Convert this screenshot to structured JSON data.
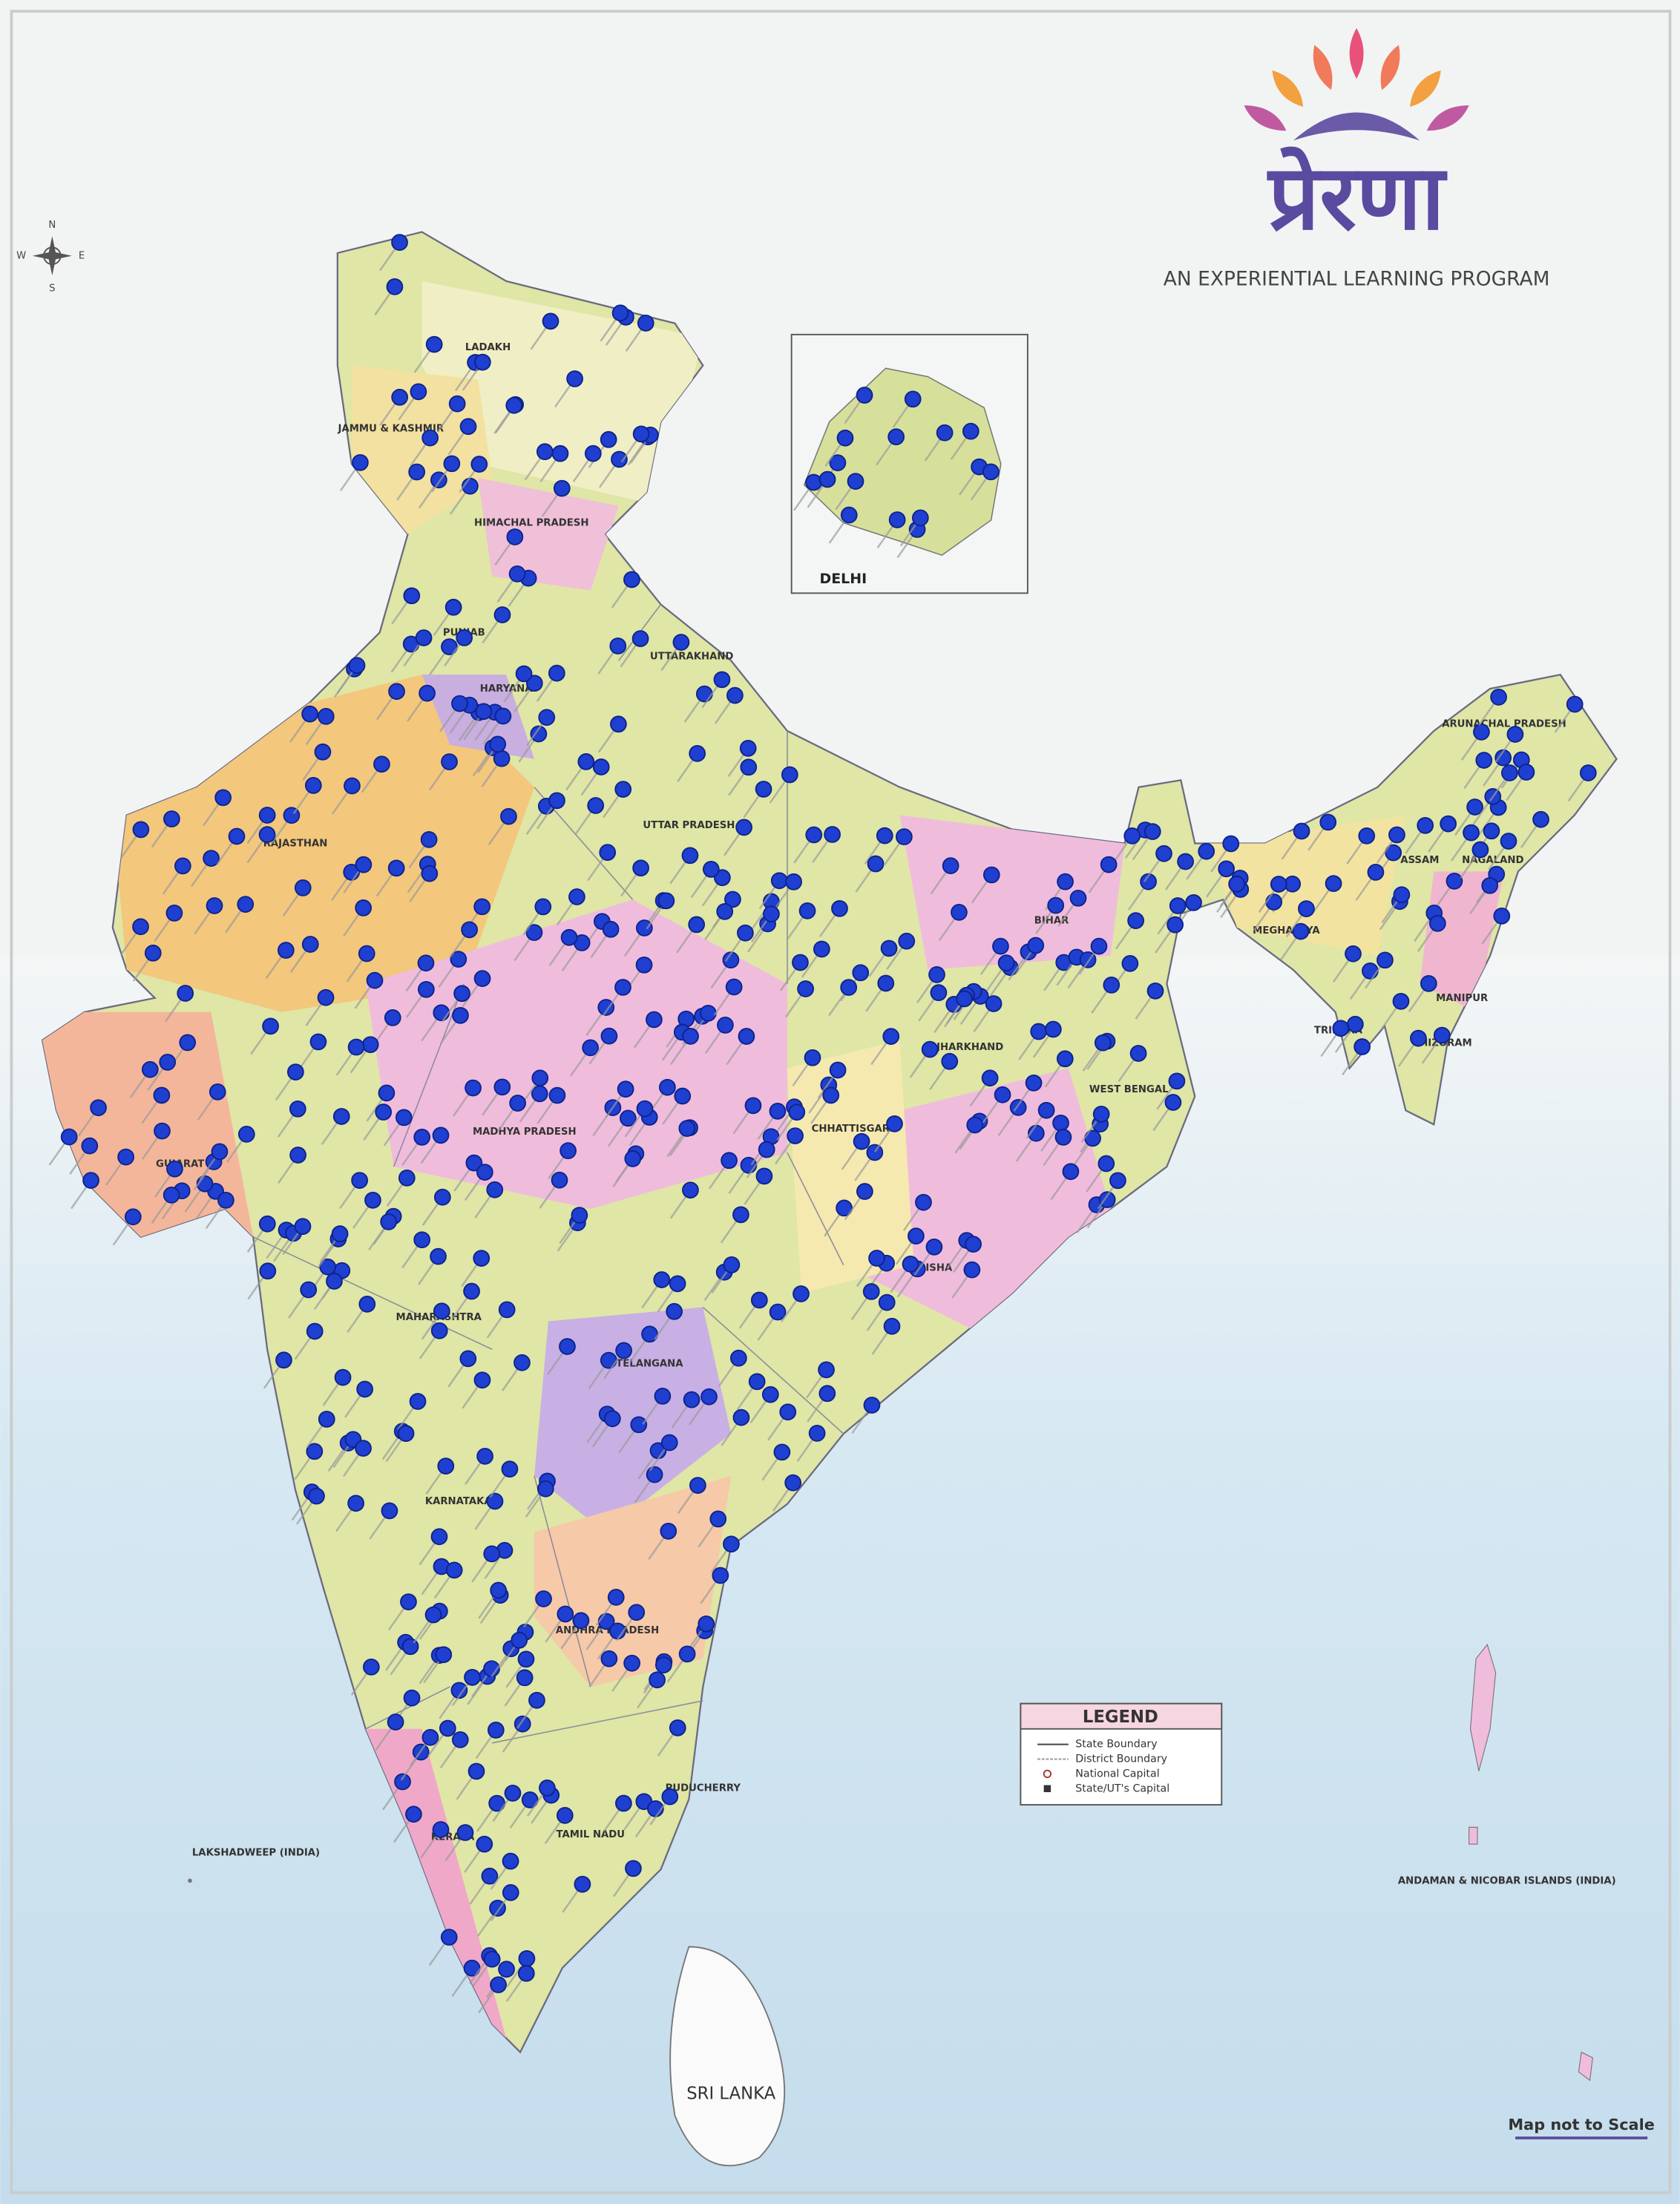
{
  "header": {
    "logo": "प्रेरणा",
    "tagline": "AN EXPERIENTIAL LEARNING PROGRAM"
  },
  "compass": [
    "N",
    "E",
    "S",
    "W"
  ],
  "map": {
    "regions": [
      "LADAKH",
      "JAMMU & KASHMIR",
      "HIMACHAL PRADESH",
      "PUNJAB",
      "UTTARAKHAND",
      "HARYANA",
      "RAJASTHAN",
      "UTTAR PRADESH",
      "BIHAR",
      "ARUNACHAL PRADESH",
      "ASSAM",
      "NAGALAND",
      "MEGHALAYA",
      "MANIPUR",
      "TRIPURA",
      "MIZORAM",
      "GUJARAT",
      "MADHYA PRADESH",
      "JHARKHAND",
      "WEST BENGAL",
      "CHHATTISGARH",
      "ODISHA",
      "MAHARASHTRA",
      "TELANGANA",
      "KARNATAKA",
      "ANDHRA PRADESH",
      "KERALA",
      "TAMIL NADU",
      "PUDUCHERRY"
    ],
    "inset_title": "DELHI",
    "islands": [
      "LAKSHADWEEP (INDIA)",
      "ANDAMAN & NICOBAR ISLANDS (INDIA)"
    ],
    "neighbor": "SRI LANKA"
  },
  "legend": {
    "title": "LEGEND",
    "items": [
      "State Boundary",
      "District Boundary",
      "National Capital",
      "State/UT's Capital"
    ]
  },
  "footer": "Map not to Scale"
}
